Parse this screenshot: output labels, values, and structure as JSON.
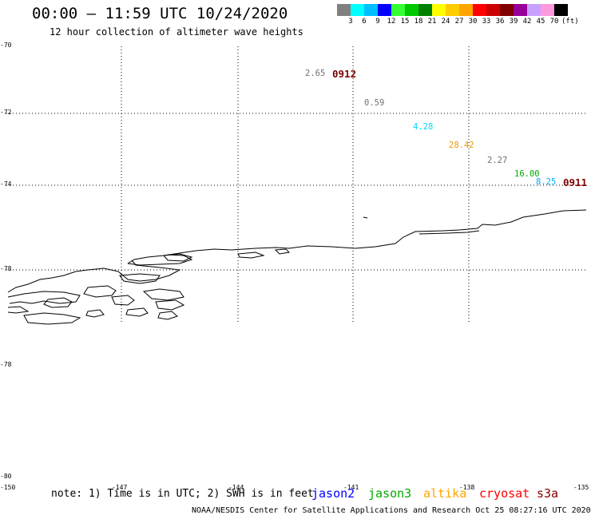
{
  "title": "00:00 – 11:59 UTC 10/24/2020",
  "subtitle": "12 hour collection of altimeter wave heights",
  "legend": {
    "unit": "(ft)",
    "colors": [
      "#808080",
      "#00ffff",
      "#00bfff",
      "#0000ff",
      "#33ff33",
      "#00c800",
      "#008000",
      "#ffff00",
      "#ffcc00",
      "#ffa500",
      "#ff0000",
      "#cc0000",
      "#800000",
      "#990099",
      "#c8a0ff",
      "#ff99dd",
      "#000000"
    ],
    "ticks": [
      "3",
      "6",
      "9",
      "12",
      "15",
      "18",
      "21",
      "24",
      "27",
      "30",
      "33",
      "36",
      "39",
      "42",
      "45",
      "70"
    ]
  },
  "lat_labels": [
    "-70",
    "-72",
    "-74",
    "-78",
    "-78",
    "-80"
  ],
  "lon_labels": [
    "-150",
    "-147",
    "-144",
    "-141",
    "-138",
    "-135"
  ],
  "observations": [
    {
      "value": "2.65",
      "color": "#707070"
    },
    {
      "value": "0.59",
      "color": "#707070"
    },
    {
      "value": "4.28",
      "color": "#00d8ff"
    },
    {
      "value": "28.42",
      "color": "#ee9900"
    },
    {
      "value": "2.27",
      "color": "#707070"
    },
    {
      "value": "16.00",
      "color": "#00aa00"
    },
    {
      "value": "8.25",
      "color": "#00aaff"
    }
  ],
  "pass_times": [
    {
      "value": "0912",
      "color": "#800000"
    },
    {
      "value": "0911",
      "color": "#800000"
    }
  ],
  "note": "note: 1) Time is in UTC; 2) SWH is in feet",
  "satellites": [
    {
      "name": "jason2",
      "color": "#0000ff"
    },
    {
      "name": "jason3",
      "color": "#00aa00"
    },
    {
      "name": "altika",
      "color": "#ffa500"
    },
    {
      "name": "cryosat",
      "color": "#ff0000"
    },
    {
      "name": "s3a",
      "color": "#800000"
    }
  ],
  "footer": "NOAA/NESDIS Center for Satellite Applications and Research   Oct 25 08:27:16 UTC 2020"
}
